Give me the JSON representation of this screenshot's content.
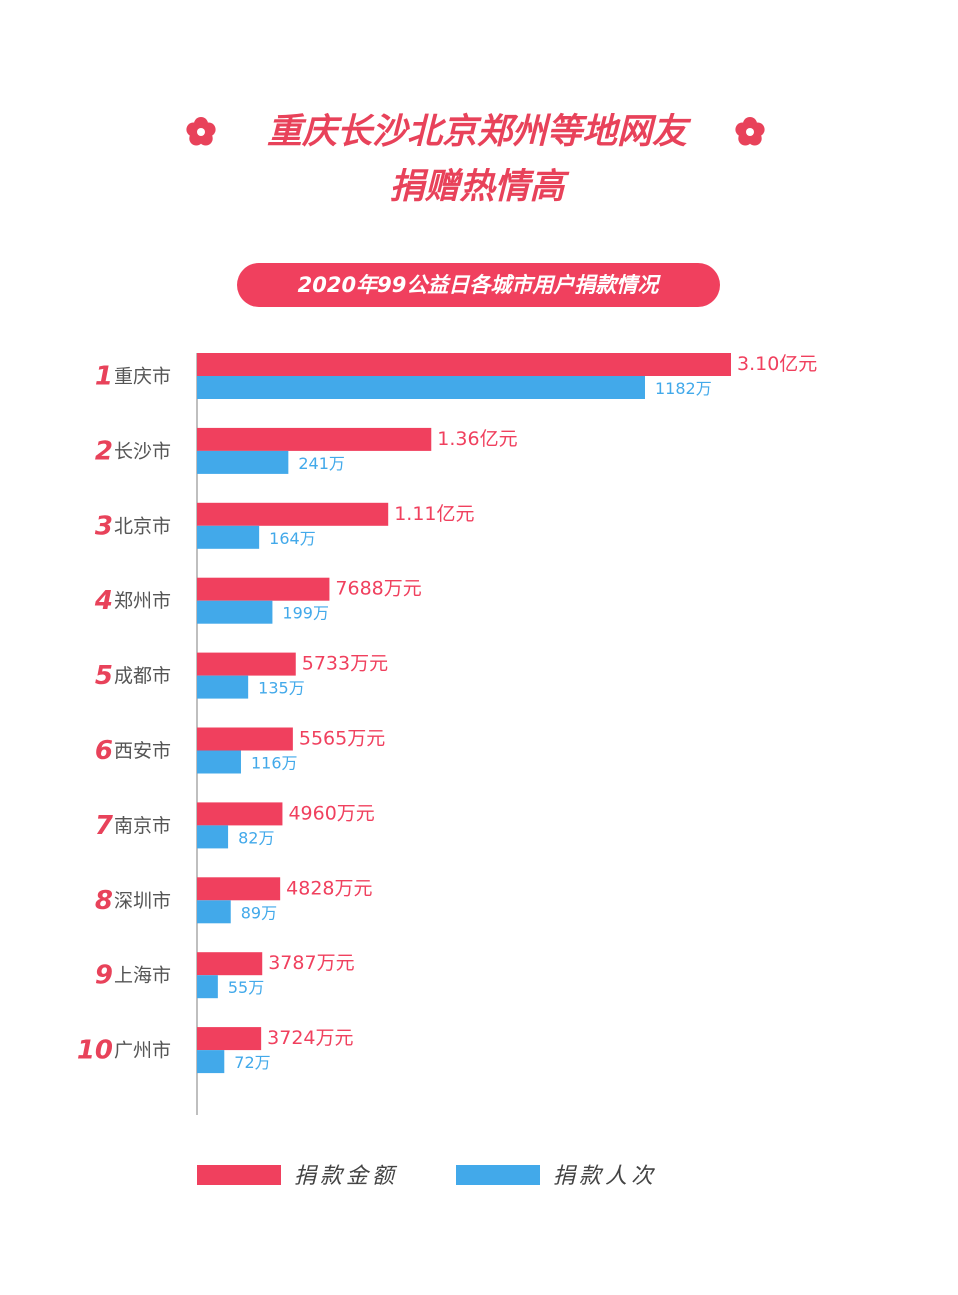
{
  "chart_data": {
    "type": "bar",
    "orientation": "horizontal",
    "title": [
      "重庆长沙北京郑州等地网友",
      "捐赠热情高"
    ],
    "subtitle": "2020年99公益日各城市用户捐款情况",
    "ranks": [
      1,
      2,
      3,
      4,
      5,
      6,
      7,
      8,
      9,
      10
    ],
    "categories": [
      "重庆市",
      "长沙市",
      "北京市",
      "郑州市",
      "成都市",
      "西安市",
      "南京市",
      "深圳市",
      "上海市",
      "广州市"
    ],
    "series": [
      {
        "name": "捐款金额",
        "color": "#f0405e",
        "values": [
          31000,
          13600,
          11100,
          7688,
          5733,
          5565,
          4960,
          4828,
          3787,
          3724
        ],
        "value_labels": [
          "3.10亿元",
          "1.36亿元",
          "1.11亿元",
          "7688万元",
          "5733万元",
          "5565万元",
          "4960万元",
          "4828万元",
          "3787万元",
          "3724万元"
        ]
      },
      {
        "name": "捐款人次",
        "color": "#42a9ea",
        "values": [
          1182,
          241,
          164,
          199,
          135,
          116,
          82,
          89,
          55,
          72
        ],
        "value_labels": [
          "1182万",
          "241万",
          "164万",
          "199万",
          "135万",
          "116万",
          "82万",
          "89万",
          "55万",
          "72万"
        ]
      }
    ]
  }
}
